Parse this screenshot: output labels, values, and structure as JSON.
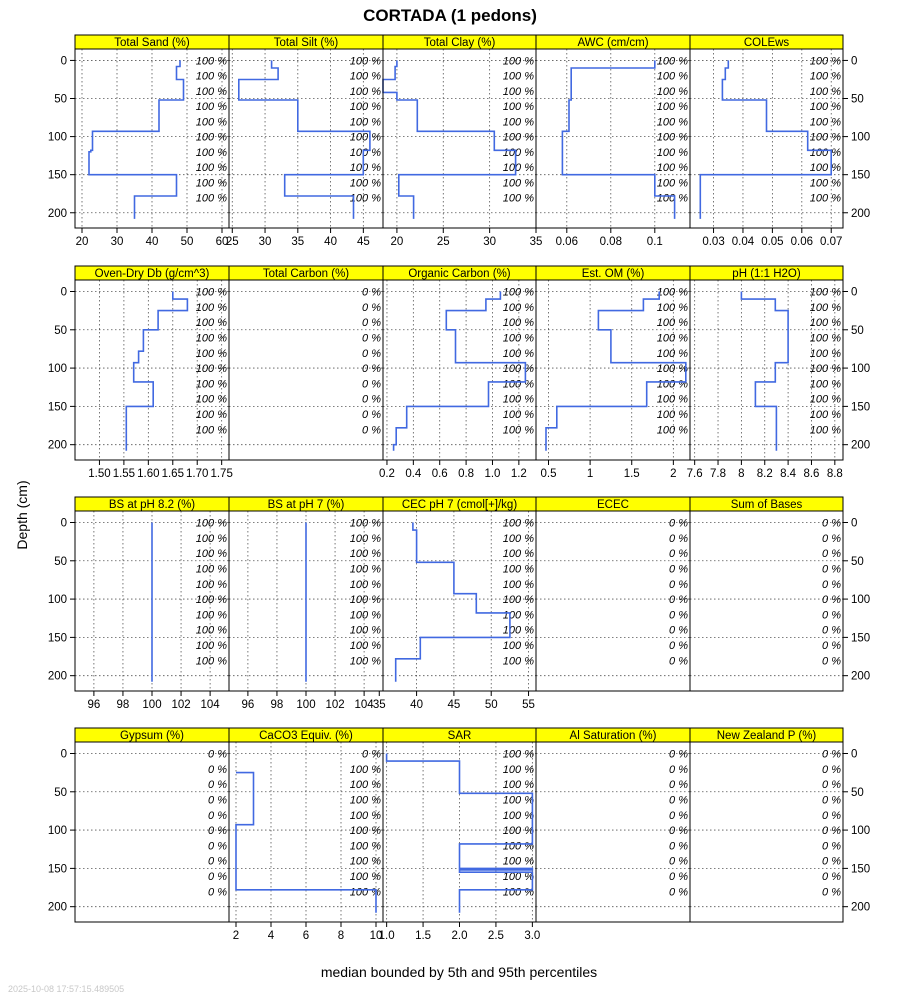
{
  "title": "CORTADA (1 pedons)",
  "ylabel": "Depth (cm)",
  "xlabel": "median bounded by 5th and 95th percentiles",
  "timestamp": "2025-10-08 17:57:15.489505",
  "colors": {
    "line": "#4169E1",
    "strip": "#FFFF00",
    "grid": "#555555"
  },
  "chart_data": {
    "type": "line",
    "ylim": [
      220,
      -15
    ],
    "y_ticks": [
      0,
      50,
      100,
      150,
      200
    ],
    "pct_depths": [
      0,
      20,
      40,
      60,
      80,
      100,
      120,
      140,
      160,
      180
    ],
    "grid": true,
    "panels": [
      {
        "label": "Total Sand (%)",
        "xlim": [
          18,
          62
        ],
        "ticks": [
          20,
          30,
          40,
          50,
          60
        ],
        "pct": [
          "100 %",
          "100 %",
          "100 %",
          "100 %",
          "100 %",
          "100 %",
          "100 %",
          "100 %",
          "100 %",
          "100 %"
        ],
        "x": [
          48,
          48,
          47,
          47,
          49,
          49,
          42,
          42,
          23,
          23,
          22.5,
          22.5,
          22,
          22,
          47,
          47,
          35,
          35
        ],
        "y": [
          0,
          8,
          8,
          25,
          25,
          52,
          52,
          93,
          93,
          118,
          118,
          120,
          120,
          150,
          150,
          178,
          178,
          208
        ]
      },
      {
        "label": "Total Silt (%)",
        "xlim": [
          24.5,
          48
        ],
        "ticks": [
          25,
          30,
          35,
          40,
          45
        ],
        "pct": [
          "100 %",
          "100 %",
          "100 %",
          "100 %",
          "100 %",
          "100 %",
          "100 %",
          "100 %",
          "100 %",
          "100 %"
        ],
        "x": [
          31,
          31,
          32,
          32,
          26,
          26,
          35,
          35,
          46,
          46,
          45,
          45,
          33,
          33,
          43.5,
          43.5
        ],
        "y": [
          0,
          10,
          10,
          25,
          25,
          52,
          52,
          93,
          93,
          118,
          118,
          150,
          150,
          178,
          178,
          208
        ]
      },
      {
        "label": "Total Clay (%)",
        "xlim": [
          18.5,
          35
        ],
        "ticks": [
          20,
          25,
          30,
          35
        ],
        "pct": [
          "100 %",
          "100 %",
          "100 %",
          "100 %",
          "100 %",
          "100 %",
          "100 %",
          "100 %",
          "100 %",
          "100 %"
        ],
        "x": [
          20,
          20,
          19.8,
          19.8,
          18.5,
          18.5,
          20,
          20,
          22.2,
          22.2,
          30.5,
          30.5,
          32.8,
          32.8,
          20.2,
          20.2,
          21.8,
          21.8
        ],
        "y": [
          0,
          8,
          8,
          25,
          25,
          42,
          42,
          52,
          52,
          93,
          93,
          118,
          118,
          150,
          150,
          178,
          178,
          208
        ]
      },
      {
        "label": "AWC (cm/cm)",
        "xlim": [
          0.046,
          0.116
        ],
        "ticks": [
          0.06,
          0.08,
          0.1
        ],
        "pct": [
          "100 %",
          "100 %",
          "100 %",
          "100 %",
          "100 %",
          "100 %",
          "100 %",
          "100 %",
          "100 %",
          "100 %"
        ],
        "x": [
          0.1,
          0.1,
          0.062,
          0.062,
          0.061,
          0.061,
          0.058,
          0.058,
          0.1,
          0.1,
          0.109,
          0.109
        ],
        "y": [
          0,
          10,
          10,
          52,
          52,
          93,
          93,
          150,
          150,
          178,
          178,
          208
        ]
      },
      {
        "label": "COLEws",
        "xlim": [
          0.022,
          0.074
        ],
        "ticks": [
          0.03,
          0.04,
          0.05,
          0.06,
          0.07
        ],
        "pct": [
          "100 %",
          "100 %",
          "100 %",
          "100 %",
          "100 %",
          "100 %",
          "100 %",
          "100 %",
          "100 %",
          "100 %"
        ],
        "x": [
          0.035,
          0.035,
          0.034,
          0.034,
          0.033,
          0.033,
          0.048,
          0.048,
          0.062,
          0.062,
          0.07,
          0.07,
          0.0255,
          0.0255
        ],
        "y": [
          0,
          10,
          10,
          25,
          25,
          52,
          52,
          93,
          93,
          118,
          118,
          150,
          150,
          208
        ]
      },
      {
        "label": "Oven-Dry Db (g/cm^3)",
        "xlim": [
          1.45,
          1.765
        ],
        "ticks": [
          1.5,
          1.55,
          1.6,
          1.65,
          1.7,
          1.75
        ],
        "tick_labels": [
          "1.50",
          "1.55",
          "1.60",
          "1.65",
          "1.70",
          "1.75"
        ],
        "pct": [
          "100 %",
          "100 %",
          "100 %",
          "100 %",
          "100 %",
          "100 %",
          "100 %",
          "100 %",
          "100 %",
          "100 %"
        ],
        "x": [
          1.65,
          1.65,
          1.68,
          1.68,
          1.62,
          1.62,
          1.59,
          1.59,
          1.58,
          1.58,
          1.57,
          1.57,
          1.61,
          1.61,
          1.555,
          1.555
        ],
        "y": [
          0,
          10,
          10,
          25,
          25,
          50,
          50,
          78,
          78,
          93,
          93,
          118,
          118,
          150,
          150,
          208
        ]
      },
      {
        "label": "Total Carbon (%)",
        "xlim": [
          0,
          1
        ],
        "ticks": [],
        "pct": [
          "0 %",
          "0 %",
          "0 %",
          "0 %",
          "0 %",
          "0 %",
          "0 %",
          "0 %",
          "0 %",
          "0 %"
        ],
        "x": [],
        "y": []
      },
      {
        "label": "Organic Carbon (%)",
        "xlim": [
          0.17,
          1.33
        ],
        "ticks": [
          0.2,
          0.4,
          0.6,
          0.8,
          1.0,
          1.2
        ],
        "tick_labels": [
          "0.2",
          "0.4",
          "0.6",
          "0.8",
          "1.0",
          "1.2"
        ],
        "pct": [
          "100 %",
          "100 %",
          "100 %",
          "100 %",
          "100 %",
          "100 %",
          "100 %",
          "100 %",
          "100 %",
          "100 %"
        ],
        "x": [
          1.06,
          1.06,
          0.95,
          0.95,
          0.65,
          0.65,
          0.72,
          0.72,
          1.25,
          1.25,
          0.97,
          0.97,
          0.35,
          0.35,
          0.27,
          0.27,
          0.25,
          0.25
        ],
        "y": [
          0,
          10,
          10,
          25,
          25,
          50,
          50,
          93,
          93,
          118,
          118,
          150,
          150,
          178,
          178,
          200,
          200,
          208
        ]
      },
      {
        "label": "Est. OM (%)",
        "xlim": [
          0.35,
          2.2
        ],
        "ticks": [
          0.5,
          1.0,
          1.5,
          2.0
        ],
        "tick_labels": [
          "0.5",
          "1",
          "1.5",
          "2"
        ],
        "pct": [
          "100 %",
          "100 %",
          "100 %",
          "100 %",
          "100 %",
          "100 %",
          "100 %",
          "100 %",
          "100 %",
          "100 %"
        ],
        "x": [
          1.83,
          1.83,
          1.64,
          1.64,
          1.1,
          1.1,
          1.25,
          1.25,
          2.15,
          2.15,
          1.68,
          1.68,
          0.6,
          0.6,
          0.47,
          0.47
        ],
        "y": [
          0,
          10,
          10,
          25,
          25,
          50,
          50,
          93,
          93,
          118,
          118,
          150,
          150,
          178,
          178,
          208
        ]
      },
      {
        "label": "pH (1:1 H2O)",
        "xlim": [
          7.56,
          8.87
        ],
        "ticks": [
          7.6,
          7.8,
          8.0,
          8.2,
          8.4,
          8.6,
          8.8
        ],
        "tick_labels": [
          "7.6",
          "7.8",
          "8",
          "8.2",
          "8.4",
          "8.6",
          "8.8"
        ],
        "pct": [
          "100 %",
          "100 %",
          "100 %",
          "100 %",
          "100 %",
          "100 %",
          "100 %",
          "100 %",
          "100 %",
          "100 %"
        ],
        "x": [
          8.0,
          8.0,
          8.29,
          8.29,
          8.4,
          8.4,
          8.29,
          8.29,
          8.12,
          8.12,
          8.3,
          8.3
        ],
        "y": [
          0,
          10,
          10,
          25,
          25,
          93,
          93,
          118,
          118,
          150,
          150,
          208
        ]
      },
      {
        "label": "BS at pH 8.2 (%)",
        "xlim": [
          94.7,
          105.3
        ],
        "ticks": [
          96,
          98,
          100,
          102,
          104
        ],
        "pct": [
          "100 %",
          "100 %",
          "100 %",
          "100 %",
          "100 %",
          "100 %",
          "100 %",
          "100 %",
          "100 %",
          "100 %"
        ],
        "x": [
          100,
          100
        ],
        "y": [
          0,
          208
        ]
      },
      {
        "label": "BS at pH 7 (%)",
        "xlim": [
          94.7,
          105.3
        ],
        "ticks": [
          96,
          98,
          100,
          102,
          104
        ],
        "pct": [
          "100 %",
          "100 %",
          "100 %",
          "100 %",
          "100 %",
          "100 %",
          "100 %",
          "100 %",
          "100 %",
          "100 %"
        ],
        "x": [
          100,
          100
        ],
        "y": [
          0,
          208
        ]
      },
      {
        "label": "CEC pH 7 (cmol[+]/kg)",
        "xlim": [
          35.5,
          56
        ],
        "ticks": [
          35,
          40,
          45,
          50,
          55
        ],
        "pct": [
          "100 %",
          "100 %",
          "100 %",
          "100 %",
          "100 %",
          "100 %",
          "100 %",
          "100 %",
          "100 %",
          "100 %"
        ],
        "x": [
          39.5,
          39.5,
          40,
          40,
          45,
          45,
          48,
          48,
          52.5,
          52.5,
          40.5,
          40.5,
          37.2,
          37.2
        ],
        "y": [
          0,
          10,
          10,
          52,
          52,
          93,
          93,
          118,
          118,
          150,
          150,
          178,
          178,
          208
        ]
      },
      {
        "label": "ECEC",
        "xlim": [
          0,
          1
        ],
        "ticks": [],
        "pct": [
          "0 %",
          "0 %",
          "0 %",
          "0 %",
          "0 %",
          "0 %",
          "0 %",
          "0 %",
          "0 %",
          "0 %"
        ],
        "x": [],
        "y": []
      },
      {
        "label": "Sum of Bases",
        "xlim": [
          0,
          1
        ],
        "ticks": [],
        "pct": [
          "0 %",
          "0 %",
          "0 %",
          "0 %",
          "0 %",
          "0 %",
          "0 %",
          "0 %",
          "0 %",
          "0 %"
        ],
        "x": [],
        "y": []
      },
      {
        "label": "Gypsum (%)",
        "xlim": [
          0,
          1
        ],
        "ticks": [],
        "pct": [
          "0 %",
          "0 %",
          "0 %",
          "0 %",
          "0 %",
          "0 %",
          "0 %",
          "0 %",
          "0 %",
          "0 %"
        ],
        "x": [],
        "y": []
      },
      {
        "label": "CaCO3 Equiv. (%)",
        "xlim": [
          1.6,
          10.4
        ],
        "ticks": [
          2,
          4,
          6,
          8,
          10
        ],
        "pct": [
          "0 %",
          "100 %",
          "100 %",
          "100 %",
          "100 %",
          "100 %",
          "100 %",
          "100 %",
          "100 %",
          "100 %"
        ],
        "x": [
          2,
          2,
          3,
          3,
          2,
          2,
          10,
          10
        ],
        "y": [
          25,
          25,
          25,
          93,
          93,
          178,
          178,
          208
        ]
      },
      {
        "label": "SAR",
        "xlim": [
          0.95,
          3.05
        ],
        "ticks": [
          1.0,
          1.5,
          2.0,
          2.5,
          3.0
        ],
        "tick_labels": [
          "1.0",
          "1.5",
          "2.0",
          "2.5",
          "3.0"
        ],
        "pct": [
          "100 %",
          "100 %",
          "100 %",
          "100 %",
          "100 %",
          "100 %",
          "100 %",
          "100 %",
          "100 %",
          "100 %"
        ],
        "x": [
          1.0,
          1.0,
          2.0,
          2.0,
          3.0,
          3.0,
          2.0,
          2.0,
          3.0,
          3.0,
          2.0,
          2.0,
          3.0,
          3.0,
          2.0,
          2.0
        ],
        "y": [
          0,
          10,
          10,
          52,
          52,
          118,
          118,
          150,
          150,
          152,
          152,
          155,
          155,
          178,
          178,
          208
        ]
      },
      {
        "label": "Al Saturation (%)",
        "xlim": [
          0,
          1
        ],
        "ticks": [],
        "pct": [
          "0 %",
          "0 %",
          "0 %",
          "0 %",
          "0 %",
          "0 %",
          "0 %",
          "0 %",
          "0 %",
          "0 %"
        ],
        "x": [],
        "y": []
      },
      {
        "label": "New Zealand P (%)",
        "xlim": [
          0,
          1
        ],
        "ticks": [],
        "pct": [
          "0 %",
          "0 %",
          "0 %",
          "0 %",
          "0 %",
          "0 %",
          "0 %",
          "0 %",
          "0 %",
          "0 %"
        ],
        "x": [],
        "y": []
      }
    ]
  }
}
